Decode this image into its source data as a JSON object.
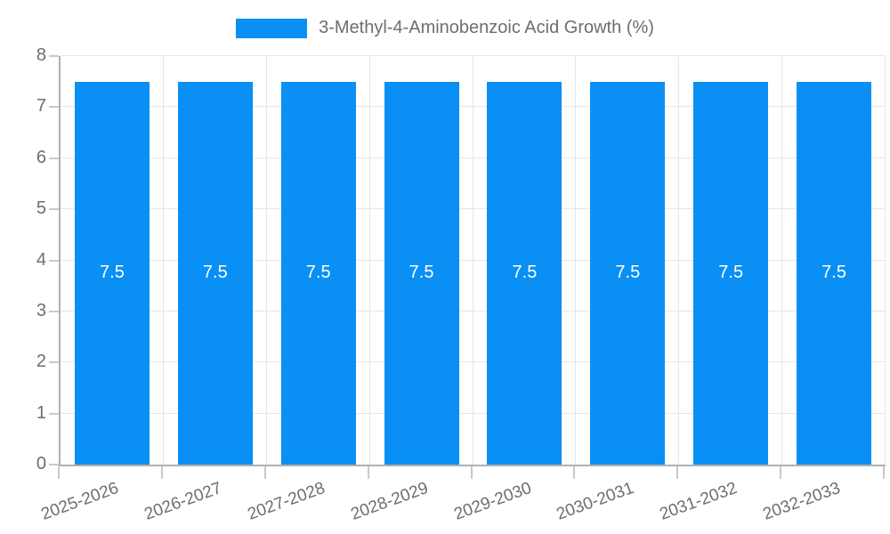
{
  "chart_data": {
    "type": "bar",
    "title": "",
    "xlabel": "",
    "ylabel": "",
    "legend": {
      "position": "top",
      "label": "3-Methyl-4-Aminobenzoic Acid Growth (%)"
    },
    "categories": [
      "2025-2026",
      "2026-2027",
      "2027-2028",
      "2028-2029",
      "2029-2030",
      "2030-2031",
      "2031-2032",
      "2032-2033"
    ],
    "series": [
      {
        "name": "3-Methyl-4-Aminobenzoic Acid Growth (%)",
        "values": [
          7.5,
          7.5,
          7.5,
          7.5,
          7.5,
          7.5,
          7.5,
          7.5
        ],
        "data_labels": [
          "7.5",
          "7.5",
          "7.5",
          "7.5",
          "7.5",
          "7.5",
          "7.5",
          "7.5"
        ]
      }
    ],
    "ylim": [
      0,
      8
    ],
    "yticks": [
      0,
      1,
      2,
      3,
      4,
      5,
      6,
      7,
      8
    ],
    "grid": true,
    "colors": {
      "bar": "#0a8ff5",
      "grid_line": "#e6e6e6",
      "axis_line": "#b0b0b0",
      "tick_mark": "#c9c9c9",
      "tick_text": "#6e6e6e",
      "bar_value_text": "#ffffff",
      "background": "#ffffff"
    }
  }
}
